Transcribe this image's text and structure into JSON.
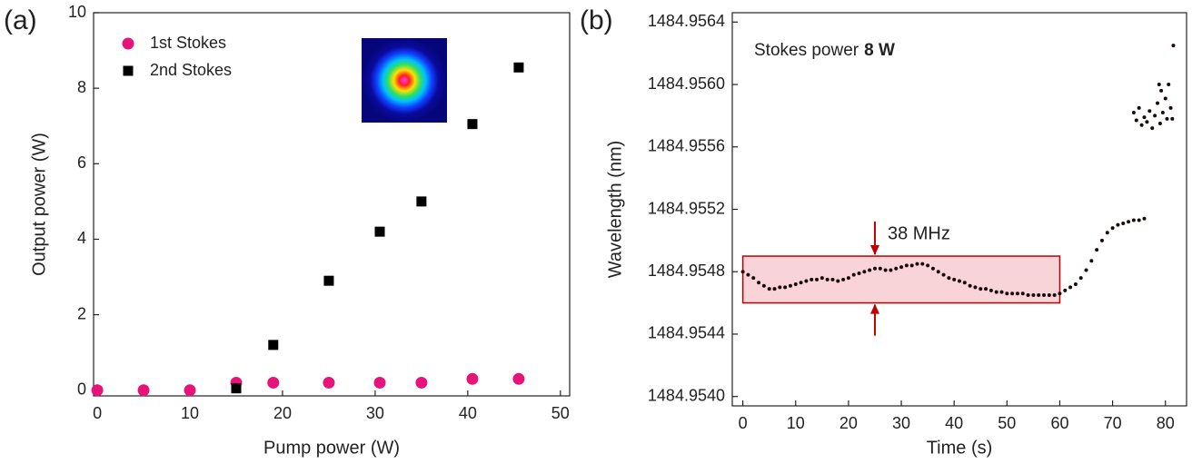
{
  "chart_data": [
    {
      "type": "scatter",
      "panel_label": "(a)",
      "x_label": "Pump power (W)",
      "y_label": "Output power (W)",
      "xlim": [
        -0.4,
        51
      ],
      "xticks": [
        0,
        10,
        20,
        30,
        40,
        50
      ],
      "ylim": [
        -0.15,
        10
      ],
      "yticks": [
        0,
        2,
        4,
        6,
        8,
        10
      ],
      "legend": "upper left",
      "series": [
        {
          "name": "1st Stokes",
          "color": "#e6147a",
          "marker": "circle",
          "x": [
            0,
            5,
            10,
            15,
            19,
            25,
            30.5,
            35,
            40.5,
            45.5
          ],
          "values": [
            0,
            0,
            0,
            0.2,
            0.2,
            0.2,
            0.2,
            0.2,
            0.3,
            0.3
          ]
        },
        {
          "name": "2nd Stokes",
          "color": "#000000",
          "marker": "square",
          "x": [
            15,
            19,
            25,
            30.5,
            35,
            40.5,
            45.5
          ],
          "values": [
            0.05,
            1.2,
            2.9,
            4.2,
            5.0,
            7.05,
            8.55
          ]
        }
      ]
    },
    {
      "type": "scatter",
      "panel_label": "(b)",
      "x_label": "Time (s)",
      "y_label": "Wavelength (nm)",
      "xlim": [
        -2,
        84
      ],
      "xticks": [
        0,
        10,
        20,
        30,
        40,
        50,
        60,
        70,
        80
      ],
      "ylim": [
        1484.95394,
        1484.95646
      ],
      "yticks": [
        {
          "value": 1484.954,
          "label": "1484.9540"
        },
        1484.9544,
        1484.9548,
        1484.9552,
        1484.9556,
        {
          "value": 1484.956,
          "label": "1484.9560"
        },
        1484.9564
      ],
      "annotation": {
        "text": "Stokes power",
        "emphasis": "8 W"
      },
      "bracket": {
        "label": "38 MHz",
        "x": [
          0,
          60
        ],
        "y": [
          1484.9546,
          1484.9549
        ],
        "arrow_x": 25
      },
      "series": [
        {
          "color": "#1a0a0a",
          "marker": "dot",
          "x": [
            0,
            1,
            2,
            3,
            4,
            5,
            6,
            7,
            8,
            9,
            10,
            11,
            12,
            13,
            14,
            15,
            16,
            17,
            18,
            19,
            20,
            21,
            22,
            23,
            24,
            25,
            26,
            27,
            28,
            29,
            30,
            31,
            32,
            33,
            34,
            35,
            36,
            37,
            38,
            39,
            40,
            41,
            42,
            43,
            44,
            45,
            46,
            47,
            48,
            49,
            50,
            51,
            52,
            53,
            54,
            55,
            56,
            57,
            58,
            59,
            60,
            61,
            62,
            63,
            64,
            65,
            66,
            67,
            68,
            69,
            70,
            71,
            72,
            73,
            74,
            75,
            76,
            74,
            74.5,
            75,
            75.5,
            76,
            76.5,
            77,
            77.5,
            78,
            78.5,
            79,
            79.2,
            79.5,
            80,
            80.3,
            80.6,
            81,
            81.3,
            81.5,
            78.8
          ],
          "values": [
            1484.9548,
            1484.95478,
            1484.95476,
            1484.95473,
            1484.95471,
            1484.95469,
            1484.95469,
            1484.9547,
            1484.9547,
            1484.95471,
            1484.95472,
            1484.95473,
            1484.95474,
            1484.95475,
            1484.95475,
            1484.95476,
            1484.95475,
            1484.95475,
            1484.95474,
            1484.95475,
            1484.95476,
            1484.95478,
            1484.95479,
            1484.9548,
            1484.95481,
            1484.95482,
            1484.95482,
            1484.95481,
            1484.95481,
            1484.95482,
            1484.95483,
            1484.95484,
            1484.95484,
            1484.95485,
            1484.95485,
            1484.95484,
            1484.95482,
            1484.9548,
            1484.95478,
            1484.95476,
            1484.95475,
            1484.95474,
            1484.95473,
            1484.95471,
            1484.9547,
            1484.95469,
            1484.95469,
            1484.95468,
            1484.95467,
            1484.95467,
            1484.95466,
            1484.95466,
            1484.95466,
            1484.95466,
            1484.95465,
            1484.95465,
            1484.95465,
            1484.95465,
            1484.95465,
            1484.95465,
            1484.95466,
            1484.95468,
            1484.9547,
            1484.95472,
            1484.95476,
            1484.95481,
            1484.95487,
            1484.95494,
            1484.955,
            1484.95505,
            1484.95508,
            1484.9551,
            1484.95511,
            1484.95512,
            1484.95513,
            1484.95513,
            1484.95514,
            1484.95582,
            1484.95577,
            1484.95585,
            1484.95574,
            1484.95579,
            1484.95576,
            1484.95583,
            1484.95572,
            1484.9558,
            1484.95588,
            1484.95575,
            1484.95596,
            1484.95582,
            1484.95591,
            1484.95578,
            1484.956,
            1484.95585,
            1484.95578,
            1484.95625,
            1484.956
          ]
        }
      ]
    }
  ]
}
